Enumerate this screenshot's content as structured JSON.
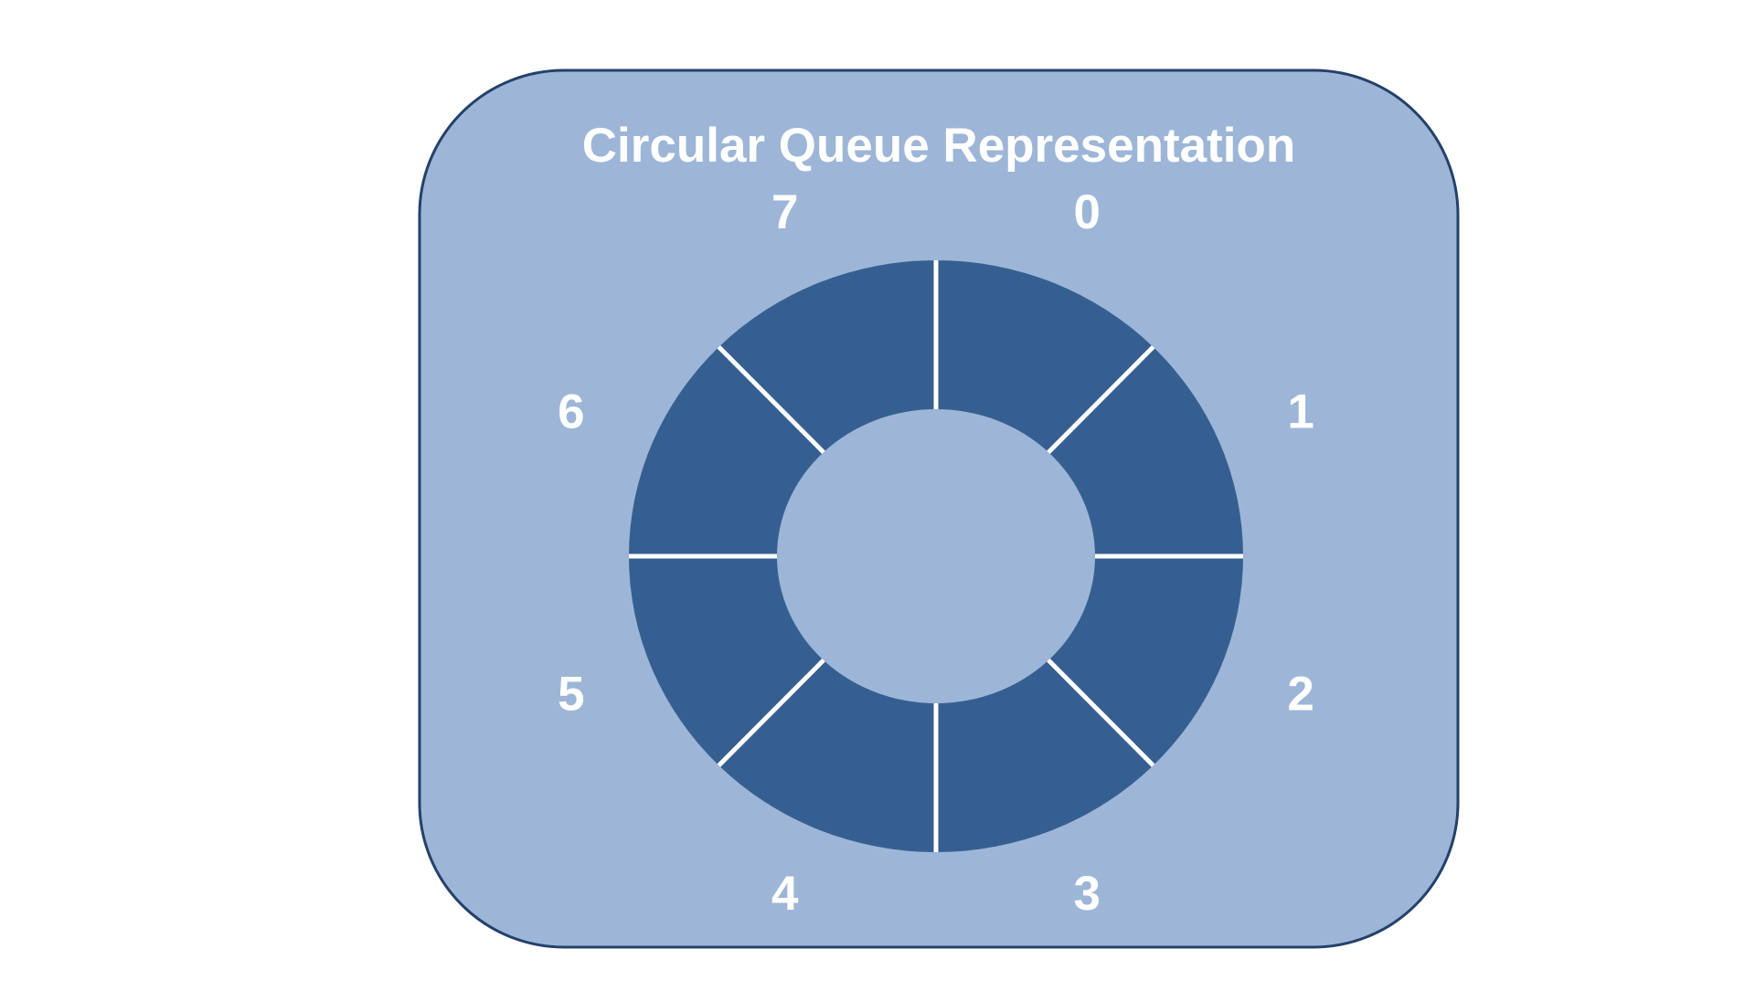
{
  "diagram": {
    "title": "Circular Queue Representation",
    "colors": {
      "panel_fill": "#9db6d7",
      "panel_border": "#24416b",
      "ring_fill": "#365f91",
      "inner_fill": "#9db6d7",
      "divider": "#ffffff",
      "text": "#ffffff"
    },
    "slots": [
      {
        "index": "0",
        "label": "0"
      },
      {
        "index": "1",
        "label": "1"
      },
      {
        "index": "2",
        "label": "2"
      },
      {
        "index": "3",
        "label": "3"
      },
      {
        "index": "4",
        "label": "4"
      },
      {
        "index": "5",
        "label": "5"
      },
      {
        "index": "6",
        "label": "6"
      },
      {
        "index": "7",
        "label": "7"
      }
    ]
  }
}
